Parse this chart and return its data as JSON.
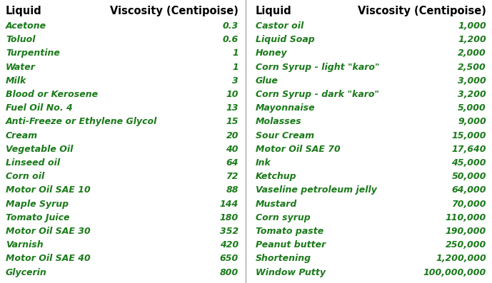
{
  "left_header_liquid": "Liquid",
  "left_header_viscosity": "Viscosity (Centipoise)",
  "right_header_liquid": "Liquid",
  "right_header_viscosity": "Viscosity (Centipoise)",
  "left_liquids": [
    "Acetone",
    "Toluol",
    "Turpentine",
    "Water",
    "Milk",
    "Blood or Kerosene",
    "Fuel Oil No. 4",
    "Anti-Freeze or Ethylene Glycol",
    "Cream",
    "Vegetable Oil",
    "Linseed oil",
    "Corn oil",
    "Motor Oil SAE 10",
    "Maple Syrup",
    "Tomato Juice",
    "Motor Oil SAE 30",
    "Varnish",
    "Motor Oil SAE 40",
    "Glycerin"
  ],
  "left_viscosities": [
    "0.3",
    "0.6",
    "1",
    "1",
    "3",
    "10",
    "13",
    "15",
    "20",
    "40",
    "64",
    "72",
    "88",
    "144",
    "180",
    "352",
    "420",
    "650",
    "800"
  ],
  "right_liquids": [
    "Castor oil",
    "Liquid Soap",
    "Honey",
    "Corn Syrup - light \"karo\"",
    "Glue",
    "Corn Syrup - dark \"karo\"",
    "Mayonnaise",
    "Molasses",
    "Sour Cream",
    "Motor Oil SAE 70",
    "Ink",
    "Ketchup",
    "Vaseline petroleum jelly",
    "Mustard",
    "Corn syrup",
    "Tomato paste",
    "Peanut butter",
    "Shortening",
    "Window Putty"
  ],
  "right_viscosities": [
    "1,000",
    "1,200",
    "2,000",
    "2,500",
    "3,000",
    "3,200",
    "5,000",
    "9,000",
    "15,000",
    "17,640",
    "45,000",
    "50,000",
    "64,000",
    "70,000",
    "110,000",
    "190,000",
    "250,000",
    "1,200,000",
    "100,000,000"
  ],
  "header_color": "#000000",
  "data_color": "#1a7a1a",
  "bg_color": "#ffffff",
  "header_fontsize": 10.5,
  "data_fontsize": 9.0,
  "divider_color": "#999999"
}
